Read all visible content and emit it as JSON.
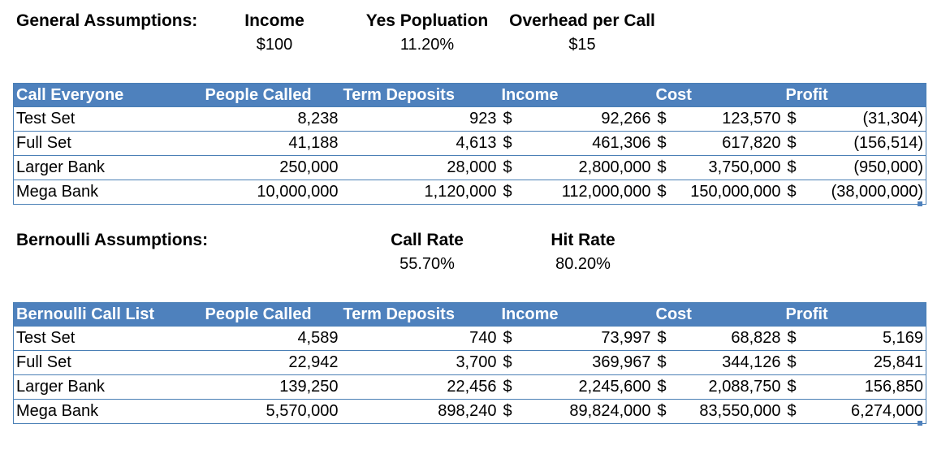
{
  "general": {
    "title": "General Assumptions:",
    "income_label": "Income",
    "income_value": "$100",
    "yes_label": "Yes Popluation",
    "yes_value": "11.20%",
    "overhead_label": "Overhead per Call",
    "overhead_value": "$15"
  },
  "table1": {
    "headers": [
      "Call Everyone",
      "People Called",
      "Term Deposits",
      "Income",
      "Cost",
      "Profit"
    ],
    "rows": [
      {
        "label": "Test Set",
        "people": "8,238",
        "term": "923",
        "cur": "$",
        "income": "92,266",
        "cost": "123,570",
        "profit": "(31,304)"
      },
      {
        "label": "Full Set",
        "people": "41,188",
        "term": "4,613",
        "cur": "$",
        "income": "461,306",
        "cost": "617,820",
        "profit": "(156,514)"
      },
      {
        "label": "Larger Bank",
        "people": "250,000",
        "term": "28,000",
        "cur": "$",
        "income": "2,800,000",
        "cost": "3,750,000",
        "profit": "(950,000)"
      },
      {
        "label": "Mega Bank",
        "people": "10,000,000",
        "term": "1,120,000",
        "cur": "$",
        "income": "112,000,000",
        "cost": "150,000,000",
        "profit": "(38,000,000)"
      }
    ]
  },
  "bernoulli": {
    "title": "Bernoulli Assumptions:",
    "call_rate_label": "Call Rate",
    "call_rate_value": "55.70%",
    "hit_rate_label": "Hit Rate",
    "hit_rate_value": "80.20%"
  },
  "table2": {
    "headers": [
      "Bernoulli Call List",
      "People Called",
      "Term Deposits",
      "Income",
      "Cost",
      "Profit"
    ],
    "rows": [
      {
        "label": "Test Set",
        "people": "4,589",
        "term": "740",
        "cur": "$",
        "income": "73,997",
        "cost": "68,828",
        "profit": "5,169"
      },
      {
        "label": "Full Set",
        "people": "22,942",
        "term": "3,700",
        "cur": "$",
        "income": "369,967",
        "cost": "344,126",
        "profit": "25,841"
      },
      {
        "label": "Larger Bank",
        "people": "139,250",
        "term": "22,456",
        "cur": "$",
        "income": "2,245,600",
        "cost": "2,088,750",
        "profit": "156,850"
      },
      {
        "label": "Mega Bank",
        "people": "5,570,000",
        "term": "898,240",
        "cur": "$",
        "income": "89,824,000",
        "cost": "83,550,000",
        "profit": "6,274,000"
      }
    ]
  },
  "colors": {
    "header_bg": "#4e81bd",
    "border": "#4a7fb5"
  }
}
